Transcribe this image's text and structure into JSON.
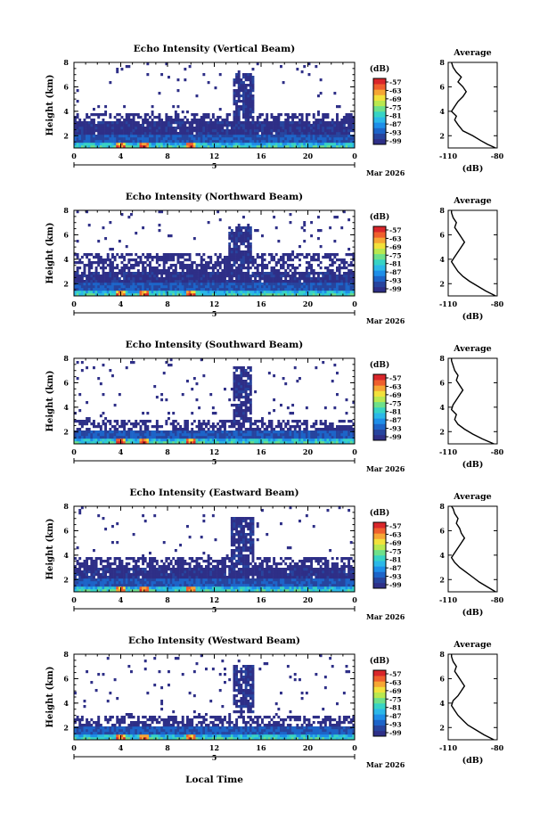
{
  "figure": {
    "xlabel_bottom": "Local Time",
    "colors": {
      "background": "#ffffff",
      "ink": "#000000",
      "colormap": [
        "#2e2f87",
        "#27449e",
        "#1d64c8",
        "#1e8ee8",
        "#2bb8e8",
        "#37d3c5",
        "#6ee08a",
        "#b9e84f",
        "#f2e13b",
        "#f6a634",
        "#ef5f2d",
        "#d9262a"
      ]
    }
  },
  "chart_data": [
    {
      "type": "heatmap",
      "title": "Echo Intensity (Vertical Beam)",
      "ylabel": "Height (km)",
      "ylim": [
        1,
        8
      ],
      "yticks": [
        "2",
        "4",
        "6",
        "8"
      ],
      "xlim": [
        0,
        24
      ],
      "xticks": [
        "0",
        "4",
        "8",
        "12",
        "16",
        "20",
        "0"
      ],
      "date_label_mid": "5",
      "date_label_right": "Mar 2026",
      "colorbar": {
        "unit": "(dB)",
        "ticks": [
          "-57",
          "-63",
          "-69",
          "-75",
          "-81",
          "-87",
          "-93",
          "-99"
        ]
      },
      "layers": {
        "dense_top_km": 3.2,
        "scatter_top_km": 3.8,
        "plume": {
          "t0": 13.6,
          "t1": 15.4,
          "h0": 3.2,
          "h1": 7.2
        }
      },
      "average": {
        "title": "Average",
        "xlabel": "(dB)",
        "xticks": [
          "-110",
          "-80"
        ],
        "yticks": [
          "2",
          "4",
          "6",
          "8"
        ],
        "xlim": [
          -110,
          -80
        ],
        "ylim": [
          1,
          8
        ],
        "profile": [
          [
            1.0,
            -81
          ],
          [
            1.3,
            -86
          ],
          [
            1.6,
            -90
          ],
          [
            2.0,
            -95
          ],
          [
            2.4,
            -101
          ],
          [
            2.9,
            -104
          ],
          [
            3.3,
            -106
          ],
          [
            3.6,
            -105
          ],
          [
            4.0,
            -108
          ],
          [
            4.4,
            -106
          ],
          [
            4.8,
            -104
          ],
          [
            5.2,
            -101
          ],
          [
            5.6,
            -99
          ],
          [
            6.0,
            -101
          ],
          [
            6.4,
            -104
          ],
          [
            6.8,
            -102
          ],
          [
            7.2,
            -105
          ],
          [
            7.6,
            -107
          ],
          [
            8.0,
            -108
          ]
        ]
      }
    },
    {
      "type": "heatmap",
      "title": "Echo Intensity (Northward Beam)",
      "ylabel": "Height (km)",
      "ylim": [
        1,
        8
      ],
      "yticks": [
        "2",
        "4",
        "6",
        "8"
      ],
      "xlim": [
        0,
        24
      ],
      "xticks": [
        "0",
        "4",
        "8",
        "12",
        "16",
        "20",
        "0"
      ],
      "date_label_mid": "5",
      "date_label_right": "Mar 2026",
      "colorbar": {
        "unit": "(dB)",
        "ticks": [
          "-57",
          "-63",
          "-69",
          "-75",
          "-81",
          "-87",
          "-93",
          "-99"
        ]
      },
      "layers": {
        "dense_top_km": 3.0,
        "scatter_top_km": 4.6,
        "plume": {
          "t0": 13.3,
          "t1": 15.2,
          "h0": 3.0,
          "h1": 6.6
        }
      },
      "average": {
        "title": "Average",
        "xlabel": "(dB)",
        "xticks": [
          "-110",
          "-80"
        ],
        "yticks": [
          "2",
          "4",
          "6",
          "8"
        ],
        "xlim": [
          -110,
          -80
        ],
        "ylim": [
          1,
          8
        ],
        "profile": [
          [
            1.0,
            -81
          ],
          [
            1.4,
            -87
          ],
          [
            1.8,
            -92
          ],
          [
            2.2,
            -97
          ],
          [
            2.6,
            -101
          ],
          [
            3.0,
            -104
          ],
          [
            3.4,
            -106
          ],
          [
            3.8,
            -108
          ],
          [
            4.2,
            -106
          ],
          [
            4.6,
            -104
          ],
          [
            5.0,
            -102
          ],
          [
            5.4,
            -100
          ],
          [
            5.8,
            -102
          ],
          [
            6.2,
            -104
          ],
          [
            6.6,
            -106
          ],
          [
            7.0,
            -105
          ],
          [
            7.4,
            -107
          ],
          [
            7.8,
            -108
          ],
          [
            8.0,
            -108
          ]
        ]
      }
    },
    {
      "type": "heatmap",
      "title": "Echo Intensity (Southward Beam)",
      "ylabel": "Height (km)",
      "ylim": [
        1,
        8
      ],
      "yticks": [
        "2",
        "4",
        "6",
        "8"
      ],
      "xlim": [
        0,
        24
      ],
      "xticks": [
        "0",
        "4",
        "8",
        "12",
        "16",
        "20",
        "0"
      ],
      "date_label_mid": "5",
      "date_label_right": "Mar 2026",
      "colorbar": {
        "unit": "(dB)",
        "ticks": [
          "-57",
          "-63",
          "-69",
          "-75",
          "-81",
          "-87",
          "-93",
          "-99"
        ]
      },
      "layers": {
        "dense_top_km": 2.2,
        "scatter_top_km": 3.0,
        "plume": {
          "t0": 13.6,
          "t1": 15.2,
          "h0": 2.6,
          "h1": 7.3
        }
      },
      "average": {
        "title": "Average",
        "xlabel": "(dB)",
        "xticks": [
          "-110",
          "-80"
        ],
        "yticks": [
          "2",
          "4",
          "6",
          "8"
        ],
        "xlim": [
          -110,
          -80
        ],
        "ylim": [
          1,
          8
        ],
        "profile": [
          [
            1.0,
            -82
          ],
          [
            1.4,
            -89
          ],
          [
            1.8,
            -95
          ],
          [
            2.2,
            -100
          ],
          [
            2.6,
            -104
          ],
          [
            3.0,
            -106
          ],
          [
            3.4,
            -105
          ],
          [
            3.8,
            -108
          ],
          [
            4.2,
            -107
          ],
          [
            4.6,
            -105
          ],
          [
            5.0,
            -103
          ],
          [
            5.4,
            -101
          ],
          [
            5.8,
            -103
          ],
          [
            6.2,
            -105
          ],
          [
            6.6,
            -104
          ],
          [
            7.0,
            -106
          ],
          [
            7.4,
            -107
          ],
          [
            7.8,
            -108
          ],
          [
            8.0,
            -108
          ]
        ]
      }
    },
    {
      "type": "heatmap",
      "title": "Echo Intensity (Eastward Beam)",
      "ylabel": "Height (km)",
      "ylim": [
        1,
        8
      ],
      "yticks": [
        "2",
        "4",
        "6",
        "8"
      ],
      "xlim": [
        0,
        24
      ],
      "xticks": [
        "0",
        "4",
        "8",
        "12",
        "16",
        "20",
        "0"
      ],
      "date_label_mid": "5",
      "date_label_right": "Mar 2026",
      "colorbar": {
        "unit": "(dB)",
        "ticks": [
          "-57",
          "-63",
          "-69",
          "-75",
          "-81",
          "-87",
          "-93",
          "-99"
        ]
      },
      "layers": {
        "dense_top_km": 3.0,
        "scatter_top_km": 3.8,
        "plume": {
          "t0": 13.4,
          "t1": 15.3,
          "h0": 3.0,
          "h1": 7.2
        }
      },
      "average": {
        "title": "Average",
        "xlabel": "(dB)",
        "xticks": [
          "-110",
          "-80"
        ],
        "yticks": [
          "2",
          "4",
          "6",
          "8"
        ],
        "xlim": [
          -110,
          -80
        ],
        "ylim": [
          1,
          8
        ],
        "profile": [
          [
            1.0,
            -81
          ],
          [
            1.4,
            -86
          ],
          [
            1.8,
            -91
          ],
          [
            2.2,
            -95
          ],
          [
            2.6,
            -99
          ],
          [
            3.0,
            -103
          ],
          [
            3.4,
            -106
          ],
          [
            3.8,
            -108
          ],
          [
            4.2,
            -106
          ],
          [
            4.6,
            -104
          ],
          [
            5.0,
            -102
          ],
          [
            5.4,
            -100
          ],
          [
            5.8,
            -102
          ],
          [
            6.2,
            -103
          ],
          [
            6.6,
            -105
          ],
          [
            7.0,
            -104
          ],
          [
            7.4,
            -106
          ],
          [
            7.8,
            -107
          ],
          [
            8.0,
            -108
          ]
        ]
      }
    },
    {
      "type": "heatmap",
      "title": "Echo Intensity (Westward Beam)",
      "ylabel": "Height (km)",
      "ylim": [
        1,
        8
      ],
      "yticks": [
        "2",
        "4",
        "6",
        "8"
      ],
      "xlim": [
        0,
        24
      ],
      "xticks": [
        "0",
        "4",
        "8",
        "12",
        "16",
        "20",
        "0"
      ],
      "date_label_mid": "5",
      "date_label_right": "Mar 2026",
      "colorbar": {
        "unit": "(dB)",
        "ticks": [
          "-57",
          "-63",
          "-69",
          "-75",
          "-81",
          "-87",
          "-93",
          "-99"
        ]
      },
      "layers": {
        "dense_top_km": 2.2,
        "scatter_top_km": 3.0,
        "plume": {
          "t0": 13.6,
          "t1": 15.3,
          "h0": 3.2,
          "h1": 7.1
        }
      },
      "average": {
        "title": "Average",
        "xlabel": "(dB)",
        "xticks": [
          "-110",
          "-80"
        ],
        "yticks": [
          "2",
          "4",
          "6",
          "8"
        ],
        "xlim": [
          -110,
          -80
        ],
        "ylim": [
          1,
          8
        ],
        "profile": [
          [
            1.0,
            -82
          ],
          [
            1.4,
            -88
          ],
          [
            1.8,
            -93
          ],
          [
            2.2,
            -98
          ],
          [
            2.6,
            -101
          ],
          [
            3.0,
            -104
          ],
          [
            3.4,
            -106
          ],
          [
            3.8,
            -108
          ],
          [
            4.2,
            -107
          ],
          [
            4.6,
            -104
          ],
          [
            5.0,
            -102
          ],
          [
            5.4,
            -100
          ],
          [
            5.8,
            -102
          ],
          [
            6.2,
            -104
          ],
          [
            6.6,
            -106
          ],
          [
            7.0,
            -105
          ],
          [
            7.4,
            -107
          ],
          [
            7.8,
            -108
          ],
          [
            8.0,
            -108
          ]
        ]
      }
    }
  ]
}
